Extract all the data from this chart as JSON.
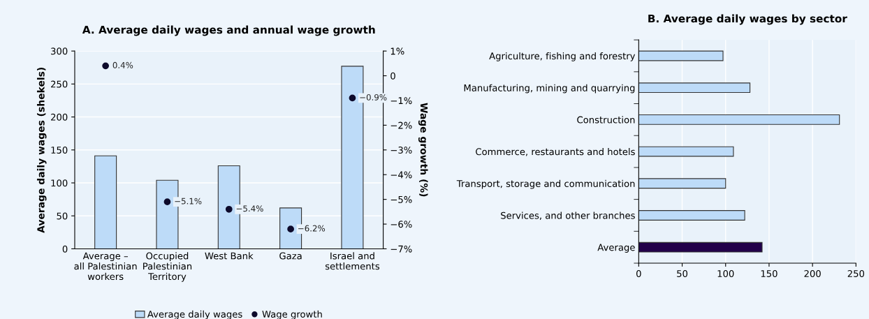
{
  "chart_data": [
    {
      "type": "bar",
      "title": "A. Average daily wages and annual wage growth",
      "ylabel": "Average daily wages (shekels)",
      "y2label": "Wage growth (%)",
      "categories": [
        "Average –\nall Palestinian\nworkers",
        "Occupied\nPalestinian\nTerritory",
        "West Bank",
        "Gaza",
        "Israel and\nsettlements"
      ],
      "series": [
        {
          "name": "Average daily wages",
          "type": "bar",
          "color": "#bddbf8",
          "values": [
            141,
            104,
            126,
            62,
            277
          ]
        },
        {
          "name": "Wage growth",
          "type": "scatter",
          "axis": "y2",
          "color": "#0d0a2b",
          "values": [
            0.4,
            -5.1,
            -5.4,
            -6.2,
            -0.9
          ],
          "value_labels": [
            "0.4%",
            "−5.1%",
            "−5.4%",
            "−6.2%",
            "−0.9%"
          ]
        }
      ],
      "ylim": [
        0,
        300
      ],
      "yticks": [
        0,
        50,
        100,
        150,
        200,
        250,
        300
      ],
      "y2lim": [
        -7,
        1
      ],
      "y2ticks": [
        {
          "value": 1,
          "label": "1%"
        },
        0,
        {
          "value": -1,
          "label": "−1%"
        },
        {
          "value": -2,
          "label": "−2%"
        },
        {
          "value": -3,
          "label": "−3%"
        },
        {
          "value": -4,
          "label": "−4%"
        },
        {
          "value": -5,
          "label": "−5%"
        },
        {
          "value": -6,
          "label": "−6%"
        },
        {
          "value": -7,
          "label": "−7%"
        }
      ],
      "grid": "y",
      "legend": "bottom",
      "marker": "circle"
    },
    {
      "type": "bar",
      "orientation": "horizontal",
      "title": "B. Average daily wages by sector",
      "categories": [
        "Agriculture, fishing and forestry",
        "Manufacturing, mining and quarrying",
        "Construction",
        "Commerce, restaurants and hotels",
        "Transport, storage and communication",
        "Services, and other branches",
        "Average"
      ],
      "values": [
        97,
        128,
        231,
        109,
        100,
        122,
        142
      ],
      "colors": [
        "#bddbf8",
        "#bddbf8",
        "#bddbf8",
        "#bddbf8",
        "#bddbf8",
        "#bddbf8",
        "#22004a"
      ],
      "xlim": [
        0,
        250
      ],
      "xticks": [
        0,
        50,
        100,
        150,
        200,
        250
      ],
      "grid": "x"
    }
  ]
}
